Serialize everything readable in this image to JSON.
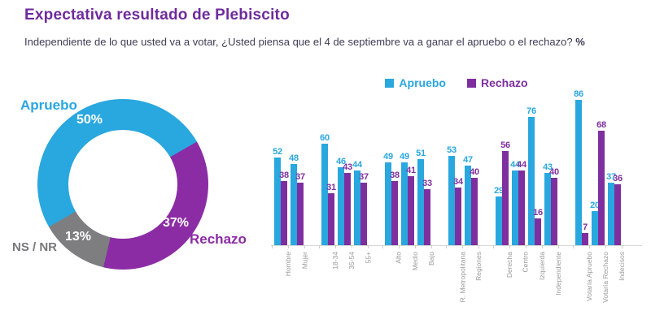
{
  "header": {
    "title": "Expectativa resultado de Plebiscito",
    "subtitle": "Independiente de lo que usted va a votar, ¿Usted piensa que el 4 de septiembre va a ganar el apruebo o el rechazo?",
    "subtitle_suffix": "%"
  },
  "colors": {
    "title": "#6E2B9C",
    "apruebo_blue": "#29A7DF",
    "rechazo_purple_bar": "#7E2F9F",
    "rechazo_purple_donut": "#8B2CA5",
    "nsnr_gray": "#7E7E81",
    "axis_line": "#D8D8D8",
    "axis_label_gray": "#9A9A9A"
  },
  "donut_labels": {
    "apruebo": "Apruebo",
    "apruebo_pct": "50%",
    "rechazo": "Rechazo",
    "rechazo_pct": "37%",
    "nsnr": "NS / NR",
    "nsnr_pct": "13%"
  },
  "legend": [
    {
      "label": "Apruebo",
      "color": "#29A7DF"
    },
    {
      "label": "Rechazo",
      "color": "#7E2F9F"
    }
  ],
  "chart_data": [
    {
      "type": "pie",
      "donut": true,
      "labels": [
        "Apruebo",
        "Rechazo",
        "NS / NR"
      ],
      "values": [
        50,
        37,
        13
      ],
      "colors": [
        "#29A7DF",
        "#8B2CA5",
        "#7E7E81"
      ],
      "start_angle_deg": 240,
      "legend_position": "outside"
    },
    {
      "type": "bar",
      "categories": [
        "Hombre",
        "Mujer",
        "18-34",
        "35-54",
        "55+",
        "Alto",
        "Medio",
        "Bajo",
        "R. Metropolitana",
        "Regiones",
        "Derecha",
        "Centro",
        "Izquierda",
        "Independiente",
        "Votaría Apruebo",
        "Votaría Rechazo",
        "Indecisos"
      ],
      "group_sizes": [
        2,
        3,
        3,
        2,
        4,
        3
      ],
      "series": [
        {
          "name": "Apruebo",
          "color": "#29A7DF",
          "values": [
            52,
            48,
            60,
            46,
            44,
            49,
            49,
            51,
            53,
            47,
            29,
            44,
            76,
            43,
            86,
            20,
            37
          ]
        },
        {
          "name": "Rechazo",
          "color": "#7E2F9F",
          "values": [
            38,
            37,
            31,
            43,
            37,
            38,
            41,
            33,
            34,
            40,
            56,
            44,
            16,
            40,
            7,
            68,
            36
          ]
        }
      ],
      "ylim": [
        0,
        92
      ],
      "grid": false,
      "legend_position": "top-center",
      "value_labels": true
    }
  ]
}
